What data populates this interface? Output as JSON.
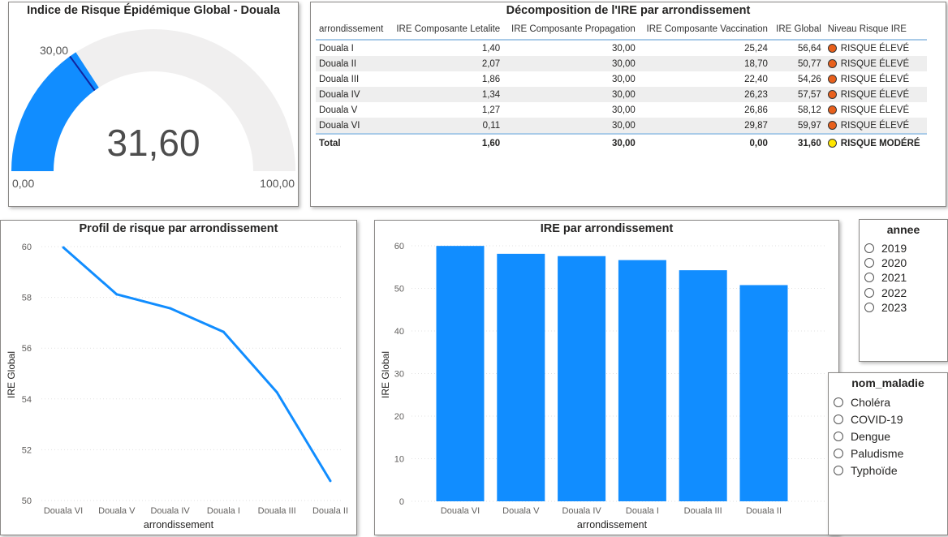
{
  "gauge": {
    "title": "Indice de Risque Épidémique Global - Douala",
    "value": 31.6,
    "value_label": "31,60",
    "min_label": "0,00",
    "max_label": "100,00",
    "target_label": "30,00",
    "min": 0,
    "max": 100,
    "target": 30,
    "fill_color": "#118dff",
    "track_color": "#f0efef",
    "target_color": "#12239e"
  },
  "table": {
    "title": "Décomposition de l'IRE par arrondissement",
    "columns": [
      "arrondissement",
      "IRE Composante Letalite",
      "IRE Composante Propagation",
      "IRE Composante Vaccination",
      "IRE Global",
      "Niveau Risque IRE"
    ],
    "rows": [
      {
        "arrondissement": "Douala I",
        "letalite": "1,40",
        "propagation": "30,00",
        "vaccination": "25,24",
        "global": "56,64",
        "niveau": "RISQUE ÉLEVÉ",
        "color": "#e8601c"
      },
      {
        "arrondissement": "Douala II",
        "letalite": "2,07",
        "propagation": "30,00",
        "vaccination": "18,70",
        "global": "50,77",
        "niveau": "RISQUE ÉLEVÉ",
        "color": "#e8601c"
      },
      {
        "arrondissement": "Douala III",
        "letalite": "1,86",
        "propagation": "30,00",
        "vaccination": "22,40",
        "global": "54,26",
        "niveau": "RISQUE ÉLEVÉ",
        "color": "#e8601c"
      },
      {
        "arrondissement": "Douala IV",
        "letalite": "1,34",
        "propagation": "30,00",
        "vaccination": "26,23",
        "global": "57,57",
        "niveau": "RISQUE ÉLEVÉ",
        "color": "#e8601c"
      },
      {
        "arrondissement": "Douala V",
        "letalite": "1,27",
        "propagation": "30,00",
        "vaccination": "26,86",
        "global": "58,12",
        "niveau": "RISQUE ÉLEVÉ",
        "color": "#e8601c"
      },
      {
        "arrondissement": "Douala VI",
        "letalite": "0,11",
        "propagation": "30,00",
        "vaccination": "29,87",
        "global": "59,97",
        "niveau": "RISQUE ÉLEVÉ",
        "color": "#e8601c"
      }
    ],
    "total": {
      "arrondissement": "Total",
      "letalite": "1,60",
      "propagation": "30,00",
      "vaccination": "0,00",
      "global": "31,60",
      "niveau": "RISQUE MODÉRÉ",
      "color": "#ffe600"
    }
  },
  "line_panel": {
    "title": "Profil de risque par arrondissement"
  },
  "bar_panel": {
    "title": "IRE par arrondissement"
  },
  "chart_data": [
    {
      "type": "line",
      "title": "Profil de risque par arrondissement",
      "xlabel": "arrondissement",
      "ylabel": "IRE Global",
      "categories": [
        "Douala VI",
        "Douala V",
        "Douala IV",
        "Douala I",
        "Douala III",
        "Douala II"
      ],
      "values": [
        59.97,
        58.12,
        57.57,
        56.64,
        54.26,
        50.77
      ],
      "ylim": [
        50,
        60
      ],
      "yticks": [
        50,
        52,
        54,
        56,
        58,
        60
      ],
      "grid": true,
      "color": "#118dff"
    },
    {
      "type": "bar",
      "title": "IRE par arrondissement",
      "xlabel": "arrondissement",
      "ylabel": "IRE Global",
      "categories": [
        "Douala VI",
        "Douala V",
        "Douala IV",
        "Douala I",
        "Douala III",
        "Douala II"
      ],
      "values": [
        59.97,
        58.12,
        57.57,
        56.64,
        54.26,
        50.77
      ],
      "ylim": [
        0,
        60
      ],
      "yticks": [
        0,
        10,
        20,
        30,
        40,
        50,
        60
      ],
      "grid": true,
      "color": "#118dff"
    }
  ],
  "slicers": {
    "annee": {
      "title": "annee",
      "options": [
        "2019",
        "2020",
        "2021",
        "2022",
        "2023"
      ]
    },
    "nom_maladie": {
      "title": "nom_maladie",
      "options": [
        "Choléra",
        "COVID-19",
        "Dengue",
        "Paludisme",
        "Typhoïde"
      ]
    }
  }
}
